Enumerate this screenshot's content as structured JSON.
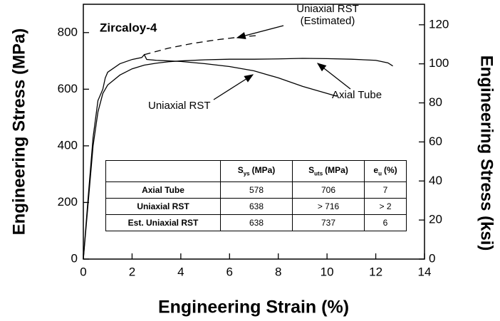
{
  "chart_data": {
    "type": "line",
    "title": "Zircaloy-4",
    "xlabel": "Engineering Strain (%)",
    "ylabel": "Engineering Stress (MPa)",
    "y2label": "Engineering Stress (ksi)",
    "xlim": [
      0,
      14
    ],
    "xticks": [
      0,
      2,
      4,
      6,
      8,
      10,
      12,
      14
    ],
    "ylim": [
      0,
      900
    ],
    "yticks": [
      0,
      200,
      400,
      600,
      800
    ],
    "y2lim": [
      0,
      130.5
    ],
    "y2ticks": [
      0,
      20,
      40,
      60,
      80,
      100,
      120
    ],
    "grid": false,
    "series": [
      {
        "name": "Axial Tube",
        "color": "#000000",
        "dash": false,
        "x": [
          0,
          0.2,
          0.4,
          0.6,
          0.8,
          1.0,
          1.5,
          2,
          2.5,
          3,
          3.5,
          4,
          5,
          6,
          7,
          8,
          9,
          10,
          11,
          12,
          12.5,
          12.7
        ],
        "values": [
          0,
          200,
          400,
          520,
          585,
          615,
          650,
          672,
          685,
          692,
          697,
          700,
          704,
          706,
          706,
          707,
          709,
          708,
          706,
          702,
          693,
          682
        ]
      },
      {
        "name": "Uniaxial RST",
        "color": "#000000",
        "dash": false,
        "x": [
          0,
          0.2,
          0.4,
          0.6,
          0.8,
          0.9,
          1.0,
          1.5,
          2.0,
          2.4,
          2.5,
          2.6,
          3,
          3.5,
          4,
          5,
          6,
          7,
          8,
          9,
          10,
          10.4
        ],
        "values": [
          0,
          220,
          430,
          560,
          600,
          640,
          660,
          690,
          705,
          712,
          722,
          705,
          702,
          700,
          698,
          690,
          680,
          665,
          640,
          610,
          585,
          575
        ]
      },
      {
        "name": "Uniaxial RST (Estimated)",
        "color": "#000000",
        "dash": true,
        "x": [
          2.5,
          3.5,
          4.5,
          5.5,
          6.5,
          7.2
        ],
        "values": [
          722,
          745,
          762,
          775,
          785,
          790
        ]
      }
    ],
    "table": {
      "header": [
        {
          "main": ""
        },
        {
          "main": "S",
          "sub": "ys",
          "unit": "(MPa)"
        },
        {
          "main": "S",
          "sub": "uts",
          "unit": "(MPa)"
        },
        {
          "main": "e",
          "sub": "u",
          "unit": "(%)"
        }
      ],
      "rows": [
        [
          "Axial Tube",
          "578",
          "706",
          "7"
        ],
        [
          "Uniaxial RST",
          "638",
          "> 716",
          "> 2"
        ],
        [
          "Est. Uniaxial RST",
          "638",
          "737",
          "6"
        ]
      ]
    }
  }
}
